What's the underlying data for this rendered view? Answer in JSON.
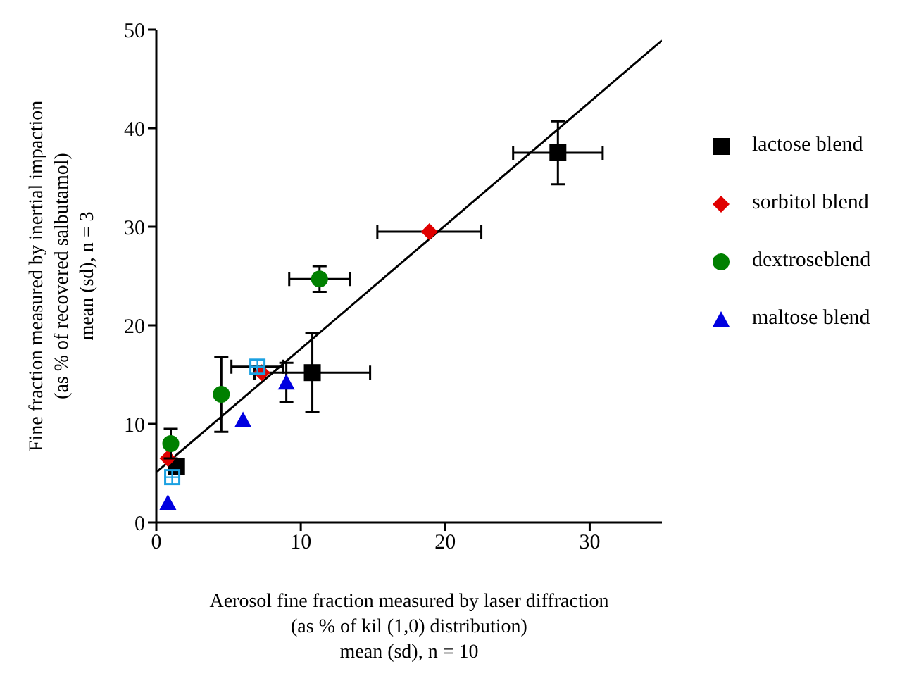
{
  "chart_data": {
    "type": "scatter",
    "xlabel": "Aerosol fine fraction measured by laser diffraction\n(as % of kil (1,0) distribution)\nmean (sd), n = 10",
    "ylabel": "Fine fraction measured by inertial impaction\n(as % of recovered salbutamol)\nmean (sd), n = 3",
    "xlim": [
      0,
      35
    ],
    "xticks": [
      0,
      10,
      20,
      30
    ],
    "ylim": [
      0,
      50
    ],
    "yticks": [
      0,
      10,
      20,
      30,
      40,
      50
    ],
    "legend": "right",
    "series": [
      {
        "name": "lactose blend",
        "color": "#000000",
        "marker": "square",
        "x": [
          1.4,
          10.8,
          27.8
        ],
        "values": [
          5.7,
          15.2,
          37.5
        ],
        "errors": [
          null,
          4,
          3.2
        ],
        "xerrors": [
          null,
          4,
          3.1
        ]
      },
      {
        "name": "sorbitol blend",
        "color": "#e00000",
        "marker": "diamond",
        "x": [
          0.8,
          7.3,
          18.9
        ],
        "values": [
          6.5,
          15.2,
          29.5
        ],
        "errors": [
          null,
          null,
          null
        ],
        "xerrors": [
          null,
          null,
          3.6
        ]
      },
      {
        "name": "dextroseblend",
        "color": "#008000",
        "marker": "circle",
        "x": [
          1.0,
          4.5,
          11.3
        ],
        "values": [
          8.0,
          13.0,
          24.7
        ],
        "errors": [
          1.5,
          3.8,
          1.3
        ],
        "xerrors": [
          null,
          null,
          2.1
        ]
      },
      {
        "name": "maltose blend",
        "color": "#0000e0",
        "marker": "triangle",
        "x": [
          0.8,
          6.0,
          9.0
        ],
        "values": [
          2.0,
          10.4,
          14.2
        ],
        "errors": [
          null,
          null,
          2
        ],
        "xerrors": [
          null,
          null,
          null
        ]
      },
      {
        "color": "#1ba1e2",
        "marker": "square",
        "x": [
          1.1,
          7.0
        ],
        "values": [
          4.6,
          15.8
        ],
        "errors": [
          null,
          null
        ],
        "xerrors": [
          null,
          1.8
        ]
      },
      {
        "type": "line",
        "color": "#000000",
        "marker": "none",
        "x": [
          0,
          35
        ],
        "values": [
          5.1,
          48.9
        ]
      }
    ]
  }
}
